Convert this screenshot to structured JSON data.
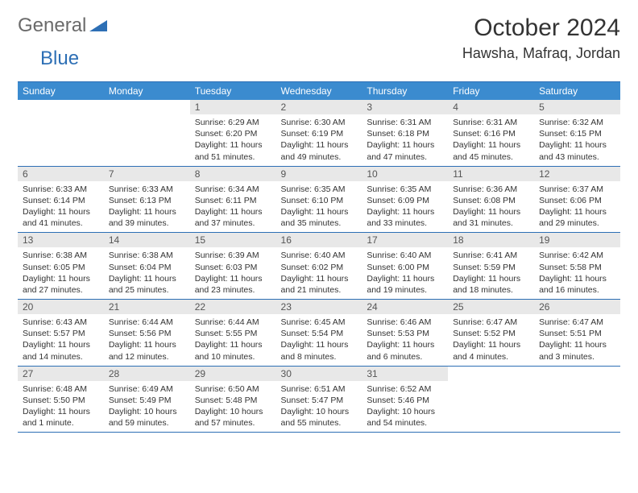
{
  "logo": {
    "part1": "General",
    "part2": "Blue"
  },
  "title": "October 2024",
  "location": "Hawsha, Mafraq, Jordan",
  "colors": {
    "header_bg": "#3b8bcf",
    "header_text": "#ffffff",
    "border": "#2d6fb5",
    "daynum_bg": "#e8e8e8",
    "text": "#333333",
    "logo_gray": "#6a6a6a",
    "logo_blue": "#2d6fb5",
    "bg": "#ffffff"
  },
  "days_of_week": [
    "Sunday",
    "Monday",
    "Tuesday",
    "Wednesday",
    "Thursday",
    "Friday",
    "Saturday"
  ],
  "weeks": [
    [
      {
        "n": "",
        "sr": "",
        "ss": "",
        "dl": ""
      },
      {
        "n": "",
        "sr": "",
        "ss": "",
        "dl": ""
      },
      {
        "n": "1",
        "sr": "Sunrise: 6:29 AM",
        "ss": "Sunset: 6:20 PM",
        "dl": "Daylight: 11 hours and 51 minutes."
      },
      {
        "n": "2",
        "sr": "Sunrise: 6:30 AM",
        "ss": "Sunset: 6:19 PM",
        "dl": "Daylight: 11 hours and 49 minutes."
      },
      {
        "n": "3",
        "sr": "Sunrise: 6:31 AM",
        "ss": "Sunset: 6:18 PM",
        "dl": "Daylight: 11 hours and 47 minutes."
      },
      {
        "n": "4",
        "sr": "Sunrise: 6:31 AM",
        "ss": "Sunset: 6:16 PM",
        "dl": "Daylight: 11 hours and 45 minutes."
      },
      {
        "n": "5",
        "sr": "Sunrise: 6:32 AM",
        "ss": "Sunset: 6:15 PM",
        "dl": "Daylight: 11 hours and 43 minutes."
      }
    ],
    [
      {
        "n": "6",
        "sr": "Sunrise: 6:33 AM",
        "ss": "Sunset: 6:14 PM",
        "dl": "Daylight: 11 hours and 41 minutes."
      },
      {
        "n": "7",
        "sr": "Sunrise: 6:33 AM",
        "ss": "Sunset: 6:13 PM",
        "dl": "Daylight: 11 hours and 39 minutes."
      },
      {
        "n": "8",
        "sr": "Sunrise: 6:34 AM",
        "ss": "Sunset: 6:11 PM",
        "dl": "Daylight: 11 hours and 37 minutes."
      },
      {
        "n": "9",
        "sr": "Sunrise: 6:35 AM",
        "ss": "Sunset: 6:10 PM",
        "dl": "Daylight: 11 hours and 35 minutes."
      },
      {
        "n": "10",
        "sr": "Sunrise: 6:35 AM",
        "ss": "Sunset: 6:09 PM",
        "dl": "Daylight: 11 hours and 33 minutes."
      },
      {
        "n": "11",
        "sr": "Sunrise: 6:36 AM",
        "ss": "Sunset: 6:08 PM",
        "dl": "Daylight: 11 hours and 31 minutes."
      },
      {
        "n": "12",
        "sr": "Sunrise: 6:37 AM",
        "ss": "Sunset: 6:06 PM",
        "dl": "Daylight: 11 hours and 29 minutes."
      }
    ],
    [
      {
        "n": "13",
        "sr": "Sunrise: 6:38 AM",
        "ss": "Sunset: 6:05 PM",
        "dl": "Daylight: 11 hours and 27 minutes."
      },
      {
        "n": "14",
        "sr": "Sunrise: 6:38 AM",
        "ss": "Sunset: 6:04 PM",
        "dl": "Daylight: 11 hours and 25 minutes."
      },
      {
        "n": "15",
        "sr": "Sunrise: 6:39 AM",
        "ss": "Sunset: 6:03 PM",
        "dl": "Daylight: 11 hours and 23 minutes."
      },
      {
        "n": "16",
        "sr": "Sunrise: 6:40 AM",
        "ss": "Sunset: 6:02 PM",
        "dl": "Daylight: 11 hours and 21 minutes."
      },
      {
        "n": "17",
        "sr": "Sunrise: 6:40 AM",
        "ss": "Sunset: 6:00 PM",
        "dl": "Daylight: 11 hours and 19 minutes."
      },
      {
        "n": "18",
        "sr": "Sunrise: 6:41 AM",
        "ss": "Sunset: 5:59 PM",
        "dl": "Daylight: 11 hours and 18 minutes."
      },
      {
        "n": "19",
        "sr": "Sunrise: 6:42 AM",
        "ss": "Sunset: 5:58 PM",
        "dl": "Daylight: 11 hours and 16 minutes."
      }
    ],
    [
      {
        "n": "20",
        "sr": "Sunrise: 6:43 AM",
        "ss": "Sunset: 5:57 PM",
        "dl": "Daylight: 11 hours and 14 minutes."
      },
      {
        "n": "21",
        "sr": "Sunrise: 6:44 AM",
        "ss": "Sunset: 5:56 PM",
        "dl": "Daylight: 11 hours and 12 minutes."
      },
      {
        "n": "22",
        "sr": "Sunrise: 6:44 AM",
        "ss": "Sunset: 5:55 PM",
        "dl": "Daylight: 11 hours and 10 minutes."
      },
      {
        "n": "23",
        "sr": "Sunrise: 6:45 AM",
        "ss": "Sunset: 5:54 PM",
        "dl": "Daylight: 11 hours and 8 minutes."
      },
      {
        "n": "24",
        "sr": "Sunrise: 6:46 AM",
        "ss": "Sunset: 5:53 PM",
        "dl": "Daylight: 11 hours and 6 minutes."
      },
      {
        "n": "25",
        "sr": "Sunrise: 6:47 AM",
        "ss": "Sunset: 5:52 PM",
        "dl": "Daylight: 11 hours and 4 minutes."
      },
      {
        "n": "26",
        "sr": "Sunrise: 6:47 AM",
        "ss": "Sunset: 5:51 PM",
        "dl": "Daylight: 11 hours and 3 minutes."
      }
    ],
    [
      {
        "n": "27",
        "sr": "Sunrise: 6:48 AM",
        "ss": "Sunset: 5:50 PM",
        "dl": "Daylight: 11 hours and 1 minute."
      },
      {
        "n": "28",
        "sr": "Sunrise: 6:49 AM",
        "ss": "Sunset: 5:49 PM",
        "dl": "Daylight: 10 hours and 59 minutes."
      },
      {
        "n": "29",
        "sr": "Sunrise: 6:50 AM",
        "ss": "Sunset: 5:48 PM",
        "dl": "Daylight: 10 hours and 57 minutes."
      },
      {
        "n": "30",
        "sr": "Sunrise: 6:51 AM",
        "ss": "Sunset: 5:47 PM",
        "dl": "Daylight: 10 hours and 55 minutes."
      },
      {
        "n": "31",
        "sr": "Sunrise: 6:52 AM",
        "ss": "Sunset: 5:46 PM",
        "dl": "Daylight: 10 hours and 54 minutes."
      },
      {
        "n": "",
        "sr": "",
        "ss": "",
        "dl": ""
      },
      {
        "n": "",
        "sr": "",
        "ss": "",
        "dl": ""
      }
    ]
  ]
}
